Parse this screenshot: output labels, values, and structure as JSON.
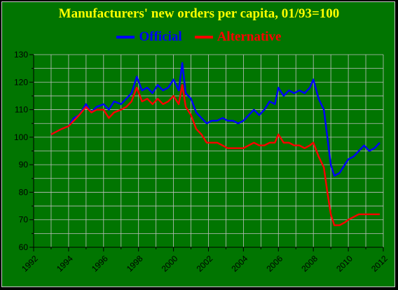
{
  "chart_data": {
    "type": "line",
    "title": "Manufacturers' new orders per capita, 01/93=100",
    "xlabel": "",
    "ylabel": "",
    "xlim": [
      1992,
      2012
    ],
    "ylim": [
      60,
      130
    ],
    "x_ticks": [
      "1992",
      "1994",
      "1996",
      "1998",
      "2000",
      "2002",
      "2004",
      "2006",
      "2008",
      "2010",
      "2012"
    ],
    "y_ticks": [
      "60",
      "70",
      "80",
      "90",
      "100",
      "110",
      "120",
      "130"
    ],
    "grid": true,
    "legend_position": "top-center",
    "colors": {
      "background": "#017501",
      "plot_background": "#017501",
      "grid": "#c0c0c0",
      "title": "#ffff00",
      "legend_text": "#ffff00",
      "border": "#c8c8c8"
    },
    "series": [
      {
        "name": "Official",
        "color": "#0000ff",
        "x": [
          1993.0,
          1993.3,
          1993.6,
          1994.0,
          1994.3,
          1994.6,
          1995.0,
          1995.3,
          1995.6,
          1996.0,
          1996.3,
          1996.6,
          1997.0,
          1997.3,
          1997.6,
          1997.9,
          1998.2,
          1998.5,
          1998.8,
          1999.1,
          1999.4,
          1999.7,
          2000.0,
          2000.3,
          2000.5,
          2000.7,
          2001.0,
          2001.3,
          2001.6,
          2001.9,
          2002.2,
          2002.5,
          2002.8,
          2003.1,
          2003.4,
          2003.7,
          2004.0,
          2004.3,
          2004.6,
          2004.9,
          2005.2,
          2005.5,
          2005.8,
          2006.0,
          2006.3,
          2006.6,
          2006.9,
          2007.2,
          2007.5,
          2007.8,
          2008.0,
          2008.3,
          2008.6,
          2008.8,
          2009.0,
          2009.2,
          2009.5,
          2009.8,
          2010.0,
          2010.3,
          2010.6,
          2010.9,
          2011.2,
          2011.5,
          2011.8
        ],
        "y": [
          101,
          102,
          103,
          104,
          107,
          108,
          112,
          109,
          111,
          112,
          110,
          113,
          112,
          114,
          116,
          122,
          117,
          118,
          116,
          119,
          117,
          118,
          121,
          117,
          127,
          116,
          114,
          109,
          107,
          105,
          106,
          106,
          107,
          106,
          106,
          105,
          106,
          108,
          110,
          108,
          110,
          113,
          112,
          118,
          115,
          117,
          116,
          117,
          116,
          118,
          121,
          114,
          110,
          100,
          90,
          86,
          87,
          90,
          92,
          93,
          95,
          97,
          95,
          96,
          98
        ]
      },
      {
        "name": "Alternative",
        "color": "#ff0000",
        "x": [
          1993.0,
          1993.3,
          1993.6,
          1994.0,
          1994.3,
          1994.6,
          1995.0,
          1995.3,
          1995.6,
          1996.0,
          1996.3,
          1996.6,
          1997.0,
          1997.3,
          1997.6,
          1997.9,
          1998.2,
          1998.5,
          1998.8,
          1999.1,
          1999.4,
          1999.7,
          2000.0,
          2000.3,
          2000.5,
          2000.7,
          2001.0,
          2001.3,
          2001.6,
          2001.9,
          2002.2,
          2002.5,
          2002.8,
          2003.1,
          2003.4,
          2003.7,
          2004.0,
          2004.3,
          2004.6,
          2004.9,
          2005.2,
          2005.5,
          2005.8,
          2006.0,
          2006.3,
          2006.6,
          2006.9,
          2007.2,
          2007.5,
          2007.8,
          2008.0,
          2008.3,
          2008.6,
          2008.8,
          2009.0,
          2009.2,
          2009.5,
          2009.8,
          2010.0,
          2010.3,
          2010.6,
          2010.9,
          2011.2,
          2011.5,
          2011.8
        ],
        "y": [
          101,
          102,
          103,
          104,
          106,
          108,
          111,
          109,
          110,
          110,
          107,
          109,
          110,
          111,
          113,
          118,
          113,
          114,
          112,
          114,
          112,
          113,
          115,
          112,
          119,
          111,
          108,
          103,
          101,
          98,
          98,
          98,
          97,
          96,
          96,
          96,
          96,
          97,
          98,
          97,
          97,
          98,
          98,
          101,
          98,
          98,
          97,
          97,
          96,
          97,
          98,
          93,
          89,
          80,
          72,
          68,
          68,
          69,
          70,
          71,
          72,
          72,
          72,
          72,
          72
        ]
      }
    ]
  }
}
